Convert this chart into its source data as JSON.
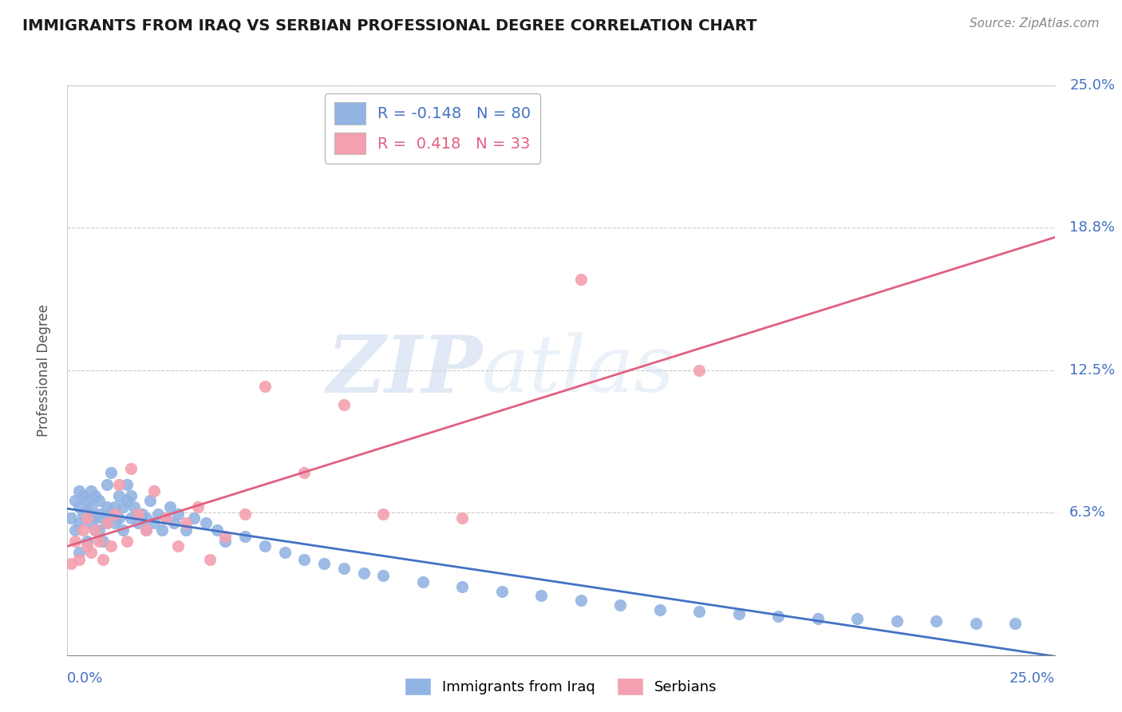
{
  "title": "IMMIGRANTS FROM IRAQ VS SERBIAN PROFESSIONAL DEGREE CORRELATION CHART",
  "source": "Source: ZipAtlas.com",
  "xlabel_bottom_left": "0.0%",
  "xlabel_bottom_right": "25.0%",
  "ylabel": "Professional Degree",
  "yticks": [
    0.0,
    0.0625,
    0.125,
    0.1875,
    0.25
  ],
  "ytick_labels": [
    "",
    "6.3%",
    "12.5%",
    "18.8%",
    "25.0%"
  ],
  "xlim": [
    0.0,
    0.25
  ],
  "ylim": [
    0.0,
    0.25
  ],
  "watermark_zip": "ZIP",
  "watermark_atlas": "atlas",
  "legend_iraq_r": -0.148,
  "legend_iraq_n": 80,
  "legend_serbian_r": 0.418,
  "legend_serbian_n": 33,
  "iraq_color": "#92b4e3",
  "serbian_color": "#f4a0b0",
  "iraq_line_color": "#4472c4",
  "serbian_line_color": "#e06080",
  "title_color": "#1a1a1a",
  "axis_label_color": "#4472c4",
  "background_color": "#ffffff",
  "iraq_dots_x": [
    0.001,
    0.002,
    0.002,
    0.003,
    0.003,
    0.003,
    0.003,
    0.004,
    0.004,
    0.005,
    0.005,
    0.005,
    0.006,
    0.006,
    0.006,
    0.007,
    0.007,
    0.007,
    0.008,
    0.008,
    0.008,
    0.009,
    0.009,
    0.01,
    0.01,
    0.01,
    0.011,
    0.011,
    0.012,
    0.012,
    0.013,
    0.013,
    0.014,
    0.014,
    0.015,
    0.015,
    0.016,
    0.016,
    0.017,
    0.018,
    0.019,
    0.02,
    0.02,
    0.021,
    0.022,
    0.023,
    0.024,
    0.025,
    0.026,
    0.027,
    0.028,
    0.03,
    0.032,
    0.035,
    0.038,
    0.04,
    0.045,
    0.05,
    0.055,
    0.06,
    0.065,
    0.07,
    0.075,
    0.08,
    0.09,
    0.1,
    0.11,
    0.12,
    0.13,
    0.14,
    0.15,
    0.16,
    0.17,
    0.18,
    0.19,
    0.2,
    0.21,
    0.22,
    0.23,
    0.24
  ],
  "iraq_dots_y": [
    0.06,
    0.068,
    0.055,
    0.065,
    0.072,
    0.058,
    0.045,
    0.07,
    0.062,
    0.063,
    0.068,
    0.05,
    0.065,
    0.058,
    0.072,
    0.06,
    0.07,
    0.055,
    0.062,
    0.068,
    0.055,
    0.06,
    0.05,
    0.065,
    0.058,
    0.075,
    0.062,
    0.08,
    0.065,
    0.058,
    0.07,
    0.06,
    0.065,
    0.055,
    0.075,
    0.068,
    0.06,
    0.07,
    0.065,
    0.058,
    0.062,
    0.06,
    0.055,
    0.068,
    0.058,
    0.062,
    0.055,
    0.06,
    0.065,
    0.058,
    0.062,
    0.055,
    0.06,
    0.058,
    0.055,
    0.05,
    0.052,
    0.048,
    0.045,
    0.042,
    0.04,
    0.038,
    0.036,
    0.035,
    0.032,
    0.03,
    0.028,
    0.026,
    0.024,
    0.022,
    0.02,
    0.019,
    0.018,
    0.017,
    0.016,
    0.016,
    0.015,
    0.015,
    0.014,
    0.014
  ],
  "serbian_dots_x": [
    0.001,
    0.002,
    0.003,
    0.004,
    0.005,
    0.005,
    0.006,
    0.007,
    0.008,
    0.009,
    0.01,
    0.011,
    0.012,
    0.013,
    0.015,
    0.016,
    0.018,
    0.02,
    0.022,
    0.025,
    0.028,
    0.03,
    0.033,
    0.036,
    0.04,
    0.045,
    0.05,
    0.06,
    0.07,
    0.08,
    0.1,
    0.13,
    0.16
  ],
  "serbian_dots_y": [
    0.04,
    0.05,
    0.042,
    0.055,
    0.048,
    0.06,
    0.045,
    0.055,
    0.05,
    0.042,
    0.058,
    0.048,
    0.062,
    0.075,
    0.05,
    0.082,
    0.062,
    0.055,
    0.072,
    0.06,
    0.048,
    0.058,
    0.065,
    0.042,
    0.052,
    0.062,
    0.118,
    0.08,
    0.11,
    0.062,
    0.06,
    0.165,
    0.125
  ]
}
